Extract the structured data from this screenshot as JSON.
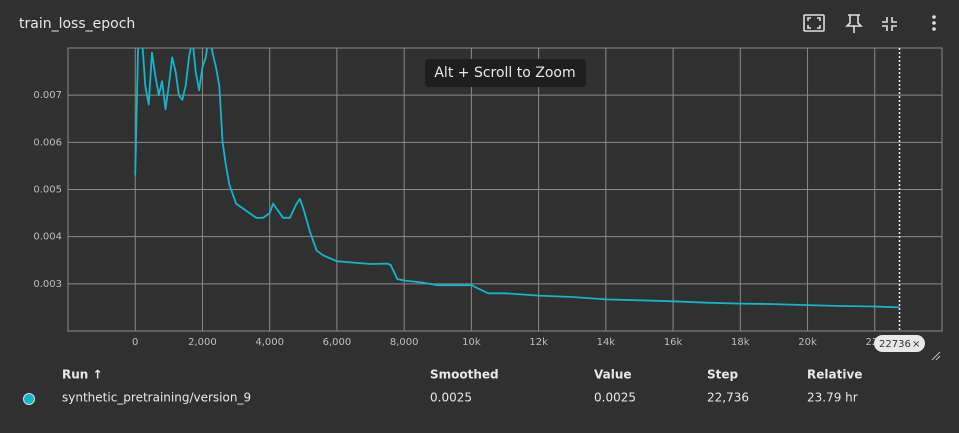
{
  "header": {
    "title": "train_loss_epoch"
  },
  "chart_data": {
    "type": "line",
    "x": [
      0,
      100,
      200,
      300,
      400,
      500,
      600,
      700,
      800,
      900,
      1000,
      1100,
      1200,
      1300,
      1400,
      1500,
      1600,
      1700,
      1800,
      1900,
      2000,
      2100,
      2200,
      2300,
      2400,
      2500,
      2600,
      2700,
      2800,
      3000,
      3200,
      3400,
      3600,
      3800,
      4000,
      4100,
      4200,
      4400,
      4600,
      4800,
      4900,
      5000,
      5200,
      5400,
      5600,
      6000,
      6500,
      7000,
      7500,
      7600,
      7800,
      8000,
      8500,
      9000,
      10000,
      10500,
      11000,
      12000,
      13000,
      14000,
      15000,
      16000,
      17000,
      18000,
      19000,
      20000,
      21000,
      22000,
      22736
    ],
    "series": [
      {
        "name": "synthetic_pretraining/version_9",
        "color": "#12b5cb",
        "values": [
          0.0053,
          0.0085,
          0.0082,
          0.0072,
          0.0068,
          0.0079,
          0.0074,
          0.007,
          0.0073,
          0.0067,
          0.0072,
          0.0078,
          0.0075,
          0.007,
          0.0069,
          0.0072,
          0.0078,
          0.0082,
          0.0075,
          0.0071,
          0.0076,
          0.0078,
          0.0083,
          0.0079,
          0.0076,
          0.0072,
          0.006,
          0.0055,
          0.0051,
          0.0047,
          0.0046,
          0.0045,
          0.0044,
          0.0044,
          0.0045,
          0.0047,
          0.0046,
          0.0044,
          0.0044,
          0.0047,
          0.0048,
          0.0046,
          0.0041,
          0.0037,
          0.0036,
          0.00348,
          0.00345,
          0.00342,
          0.00343,
          0.0034,
          0.0031,
          0.00307,
          0.00303,
          0.00297,
          0.00297,
          0.0028,
          0.0028,
          0.00275,
          0.00272,
          0.00267,
          0.00265,
          0.00263,
          0.0026,
          0.00258,
          0.00257,
          0.00255,
          0.00253,
          0.00252,
          0.0025
        ]
      }
    ],
    "xlim": [
      -2000,
      24000
    ],
    "xticks": [
      0,
      {
        "value": 2000,
        "label": "2,000"
      },
      {
        "value": 4000,
        "label": "4,000"
      },
      {
        "value": 6000,
        "label": "6,000"
      },
      {
        "value": 8000,
        "label": "8,000"
      },
      {
        "value": 10000,
        "label": "10k"
      },
      {
        "value": 12000,
        "label": "12k"
      },
      {
        "value": 14000,
        "label": "14k"
      },
      {
        "value": 16000,
        "label": "16k"
      },
      {
        "value": 18000,
        "label": "18k"
      },
      {
        "value": 20000,
        "label": "20k"
      },
      {
        "value": 22000,
        "label": "22k"
      }
    ],
    "ylim": [
      0.002,
      0.008
    ],
    "yticks": [
      0.003,
      0.004,
      0.005,
      0.006,
      0.007
    ],
    "grid": true
  },
  "zoom_hint": "Alt + Scroll to Zoom",
  "step_chip": 22736,
  "table": {
    "columns": [
      "Run ↑",
      "Smoothed",
      "Value",
      "Step",
      "Relative"
    ],
    "rows": [
      [
        "synthetic_pretraining/version_9",
        "0.0025",
        "0.0025",
        "22,736",
        "23.79 hr"
      ]
    ]
  }
}
